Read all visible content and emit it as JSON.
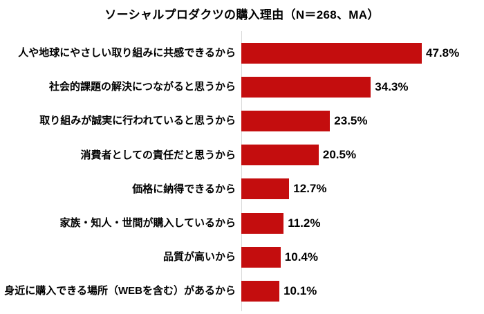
{
  "chart_data": {
    "type": "bar",
    "orientation": "horizontal",
    "title": "ソーシャルプロダクツの購入理由（N＝268、MA）",
    "categories": [
      "人や地球にやさしい取り組みに共感できるから",
      "社会的課題の解決につながると思うから",
      "取り組みが誠実に行われていると思うから",
      "消費者としての責任だと思うから",
      "価格に納得できるから",
      "家族・知人・世間が購入しているから",
      "品質が高いから",
      "身近に購入できる場所（WEBを含む）があるから"
    ],
    "values": [
      47.8,
      34.3,
      23.5,
      20.5,
      12.7,
      11.2,
      10.4,
      10.1
    ],
    "value_labels": [
      "47.8%",
      "34.3%",
      "23.5%",
      "20.5%",
      "12.7%",
      "11.2%",
      "10.4%",
      "10.1%"
    ],
    "unit": "%",
    "xlim": [
      0,
      50
    ],
    "bar_color": "#c40d0e",
    "axis_line_color": "#d9d9d9",
    "grid": false,
    "legend": "none"
  }
}
